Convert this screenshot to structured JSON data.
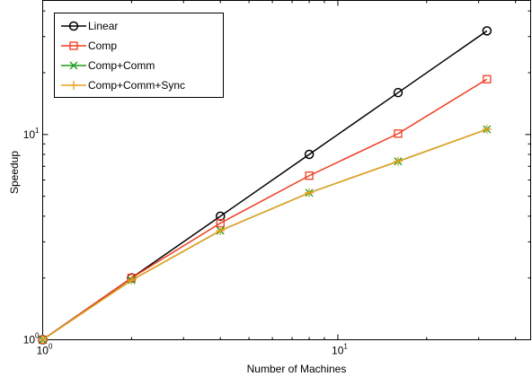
{
  "chart_data": {
    "type": "line",
    "xscale": "log",
    "yscale": "log",
    "xlabel": "Number of Machines",
    "ylabel": "Speedup",
    "xlim": [
      1,
      45
    ],
    "ylim": [
      1,
      45
    ],
    "x_ticks": [
      {
        "value": 1,
        "base": "10",
        "exp": "0"
      },
      {
        "value": 10,
        "base": "10",
        "exp": "1"
      }
    ],
    "y_ticks": [
      {
        "value": 1,
        "base": "10",
        "exp": "0"
      },
      {
        "value": 10,
        "base": "10",
        "exp": "1"
      }
    ],
    "grid": false,
    "legend_position": "top-left",
    "x": [
      1,
      2,
      4,
      8,
      16,
      32
    ],
    "series": [
      {
        "name": "Linear",
        "values": [
          1,
          2,
          4,
          8,
          16,
          32
        ],
        "color": "#000000",
        "marker": "circle"
      },
      {
        "name": "Comp",
        "values": [
          1,
          2.0,
          3.7,
          6.3,
          10.1,
          18.6
        ],
        "color": "#f03c1e",
        "marker": "square"
      },
      {
        "name": "Comp+Comm",
        "values": [
          1,
          1.95,
          3.4,
          5.2,
          7.4,
          10.6
        ],
        "color": "#1a9a1a",
        "marker": "x"
      },
      {
        "name": "Comp+Comm+Sync",
        "values": [
          1,
          1.95,
          3.4,
          5.2,
          7.4,
          10.6
        ],
        "color": "#e8a020",
        "marker": "plus"
      }
    ]
  }
}
